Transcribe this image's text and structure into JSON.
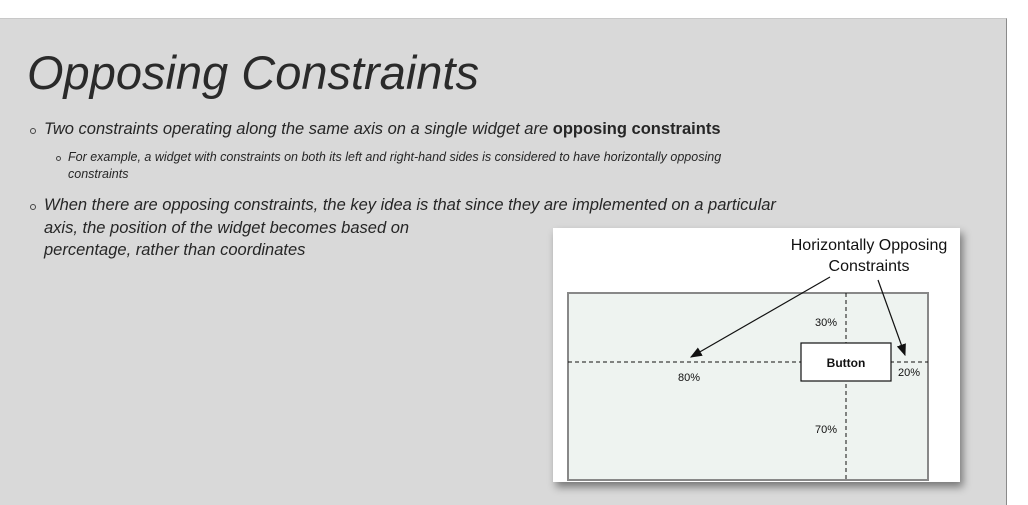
{
  "slide": {
    "title": "Opposing Constraints",
    "bullets": [
      {
        "text": "Two constraints operating along the same axis on a single widget are ",
        "bold": "opposing constraints",
        "sub_bullets": [
          {
            "lines": [
              "For example, a widget with constraints on both its left and right-hand sides is considered to have horizontally opposing",
              "constraints"
            ]
          }
        ]
      },
      {
        "lines": [
          "When there are opposing constraints, the key idea is that since they are implemented on a particular",
          "axis, the position of the widget becomes based on",
          "percentage, rather than coordinates"
        ]
      }
    ],
    "diagram": {
      "title_lines": [
        "Horizontally Opposing",
        "Constraints"
      ],
      "button": "Button",
      "top_label": "30%",
      "left_label": "80%",
      "right_label": "20%",
      "bottom_label": "70%"
    }
  }
}
